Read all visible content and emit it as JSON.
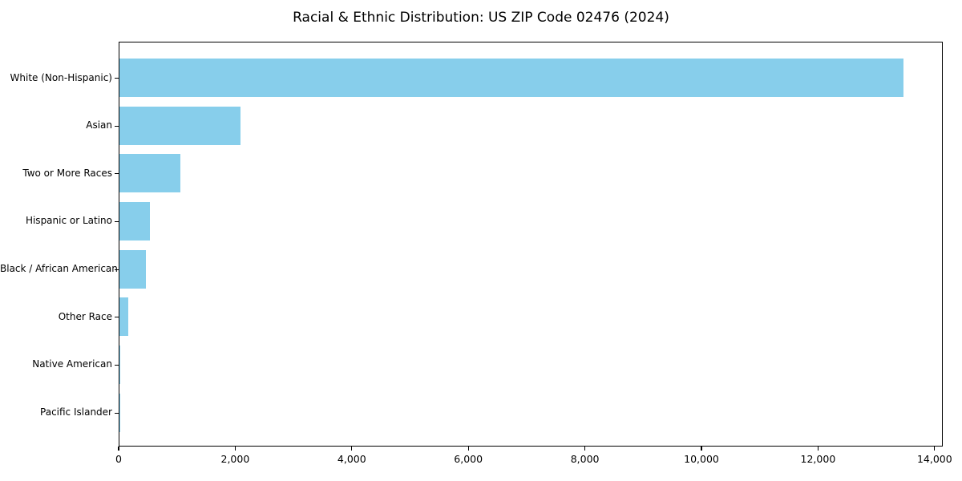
{
  "figure": {
    "background": "#ffffff"
  },
  "chart_data": {
    "type": "bar",
    "orientation": "horizontal",
    "title": "Racial & Ethnic Distribution: US ZIP Code 02476 (2024)",
    "xlabel": "",
    "ylabel": "",
    "categories": [
      "White (Non-Hispanic)",
      "Asian",
      "Two or More Races",
      "Hispanic or Latino",
      "Black / African American",
      "Other Race",
      "Native American",
      "Pacific Islander"
    ],
    "values": [
      13450,
      2070,
      1050,
      520,
      450,
      150,
      15,
      3
    ],
    "xlim": [
      0,
      14140
    ],
    "xticks": [
      0,
      2000,
      4000,
      6000,
      8000,
      10000,
      12000,
      14000
    ],
    "xtick_labels": [
      "0",
      "2,000",
      "4,000",
      "6,000",
      "8,000",
      "10,000",
      "12,000",
      "14,000"
    ],
    "grid": false,
    "legend": false,
    "bar_color": "#87CEEB",
    "spine_color": "#000000",
    "text_color": "#000000"
  }
}
